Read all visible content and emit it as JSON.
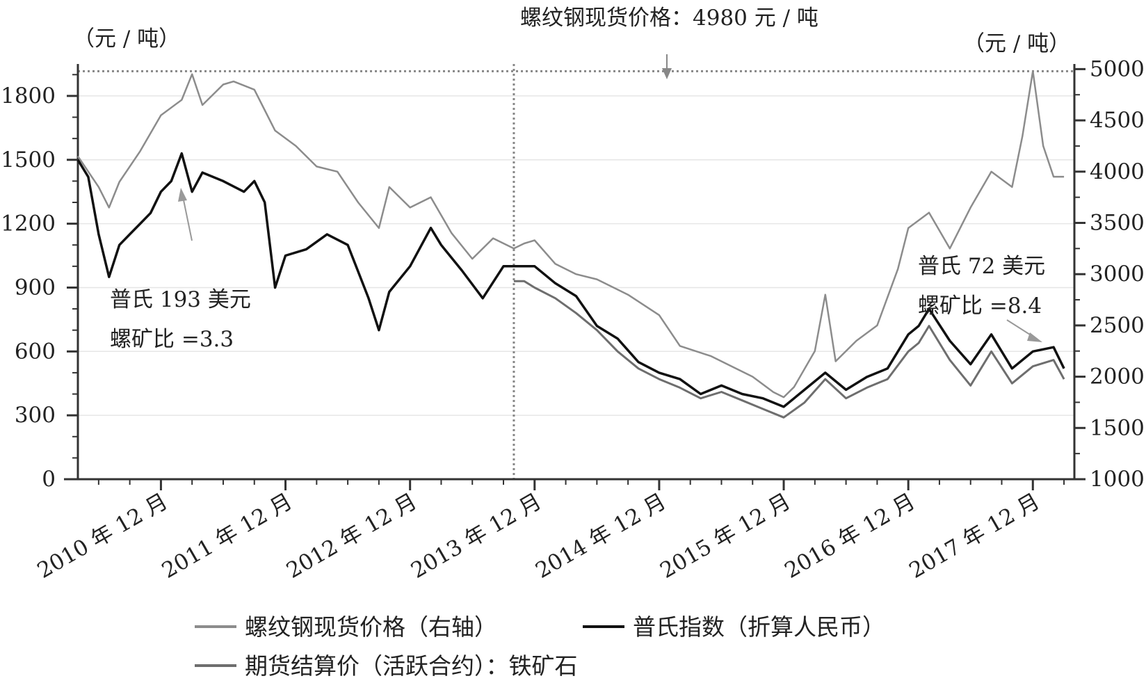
{
  "chart_data": {
    "type": "line",
    "title": "",
    "left_axis": {
      "unit": "（元 / 吨）",
      "ylim": [
        0,
        1950
      ],
      "ticks": [
        0,
        300,
        600,
        900,
        1200,
        1500,
        1800
      ]
    },
    "right_axis": {
      "unit": "（元 / 吨）",
      "ylim": [
        1000,
        5050
      ],
      "ticks": [
        1000,
        1500,
        2000,
        2500,
        3000,
        3500,
        4000,
        4500,
        5000
      ]
    },
    "x_axis": {
      "range": [
        "2010-04",
        "2018-04"
      ],
      "ticks": [
        "2010-12",
        "2011-12",
        "2012-12",
        "2013-12",
        "2014-12",
        "2015-12",
        "2016-12",
        "2017-12"
      ],
      "tick_labels": [
        "2010 年 12 月",
        "2011 年 12 月",
        "2012 年 12 月",
        "2013 年 12 月",
        "2014 年 12 月",
        "2015 年 12 月",
        "2016 年 12 月",
        "2017 年 12 月"
      ]
    },
    "grid": true,
    "legend_position": "bottom",
    "series": [
      {
        "name": "螺纹钢现货价格（右轴）",
        "axis": "right",
        "color": "#8c8c8c",
        "points": [
          [
            "2010-04",
            4150
          ],
          [
            "2010-06",
            3850
          ],
          [
            "2010-07",
            3650
          ],
          [
            "2010-08",
            3900
          ],
          [
            "2010-10",
            4200
          ],
          [
            "2010-12",
            4550
          ],
          [
            "2011-02",
            4700
          ],
          [
            "2011-03",
            4950
          ],
          [
            "2011-04",
            4650
          ],
          [
            "2011-06",
            4850
          ],
          [
            "2011-07",
            4880
          ],
          [
            "2011-09",
            4800
          ],
          [
            "2011-11",
            4400
          ],
          [
            "2012-01",
            4250
          ],
          [
            "2012-03",
            4050
          ],
          [
            "2012-05",
            4000
          ],
          [
            "2012-07",
            3700
          ],
          [
            "2012-09",
            3450
          ],
          [
            "2012-10",
            3850
          ],
          [
            "2012-12",
            3650
          ],
          [
            "2013-02",
            3750
          ],
          [
            "2013-04",
            3400
          ],
          [
            "2013-06",
            3150
          ],
          [
            "2013-08",
            3350
          ],
          [
            "2013-10",
            3250
          ],
          [
            "2013-11",
            3300
          ],
          [
            "2013-12",
            3330
          ],
          [
            "2014-02",
            3100
          ],
          [
            "2014-04",
            3000
          ],
          [
            "2014-06",
            2950
          ],
          [
            "2014-09",
            2800
          ],
          [
            "2014-12",
            2600
          ],
          [
            "2015-02",
            2300
          ],
          [
            "2015-05",
            2200
          ],
          [
            "2015-07",
            2100
          ],
          [
            "2015-09",
            2000
          ],
          [
            "2015-11",
            1850
          ],
          [
            "2015-12",
            1800
          ],
          [
            "2016-01",
            1900
          ],
          [
            "2016-03",
            2250
          ],
          [
            "2016-04",
            2800
          ],
          [
            "2016-05",
            2150
          ],
          [
            "2016-07",
            2350
          ],
          [
            "2016-09",
            2500
          ],
          [
            "2016-11",
            3050
          ],
          [
            "2016-12",
            3450
          ],
          [
            "2017-02",
            3600
          ],
          [
            "2017-04",
            3250
          ],
          [
            "2017-06",
            3650
          ],
          [
            "2017-08",
            4000
          ],
          [
            "2017-10",
            3850
          ],
          [
            "2017-11",
            4350
          ],
          [
            "2017-12",
            4980
          ],
          [
            "2018-01",
            4250
          ],
          [
            "2018-02",
            3950
          ],
          [
            "2018-03",
            3950
          ]
        ]
      },
      {
        "name": "普氏指数（折算人民币）",
        "axis": "left",
        "color": "#111111",
        "points": [
          [
            "2010-04",
            1500
          ],
          [
            "2010-05",
            1420
          ],
          [
            "2010-06",
            1150
          ],
          [
            "2010-07",
            950
          ],
          [
            "2010-08",
            1100
          ],
          [
            "2010-09",
            1150
          ],
          [
            "2010-10",
            1200
          ],
          [
            "2010-11",
            1250
          ],
          [
            "2010-12",
            1350
          ],
          [
            "2011-01",
            1400
          ],
          [
            "2011-02",
            1530
          ],
          [
            "2011-03",
            1350
          ],
          [
            "2011-04",
            1440
          ],
          [
            "2011-06",
            1400
          ],
          [
            "2011-08",
            1350
          ],
          [
            "2011-09",
            1400
          ],
          [
            "2011-10",
            1300
          ],
          [
            "2011-11",
            900
          ],
          [
            "2011-12",
            1050
          ],
          [
            "2012-02",
            1080
          ],
          [
            "2012-04",
            1150
          ],
          [
            "2012-06",
            1100
          ],
          [
            "2012-08",
            850
          ],
          [
            "2012-09",
            700
          ],
          [
            "2012-10",
            880
          ],
          [
            "2012-12",
            1000
          ],
          [
            "2013-02",
            1180
          ],
          [
            "2013-03",
            1100
          ],
          [
            "2013-05",
            980
          ],
          [
            "2013-07",
            850
          ],
          [
            "2013-09",
            1000
          ],
          [
            "2013-11",
            1000
          ],
          [
            "2013-12",
            1000
          ],
          [
            "2014-02",
            920
          ],
          [
            "2014-04",
            860
          ],
          [
            "2014-06",
            720
          ],
          [
            "2014-08",
            660
          ],
          [
            "2014-10",
            550
          ],
          [
            "2014-12",
            500
          ],
          [
            "2015-02",
            470
          ],
          [
            "2015-04",
            400
          ],
          [
            "2015-06",
            440
          ],
          [
            "2015-08",
            400
          ],
          [
            "2015-10",
            380
          ],
          [
            "2015-12",
            340
          ],
          [
            "2016-02",
            420
          ],
          [
            "2016-04",
            500
          ],
          [
            "2016-06",
            420
          ],
          [
            "2016-08",
            480
          ],
          [
            "2016-10",
            520
          ],
          [
            "2016-12",
            680
          ],
          [
            "2017-01",
            720
          ],
          [
            "2017-02",
            800
          ],
          [
            "2017-04",
            650
          ],
          [
            "2017-06",
            540
          ],
          [
            "2017-08",
            680
          ],
          [
            "2017-10",
            520
          ],
          [
            "2017-12",
            600
          ],
          [
            "2018-02",
            620
          ],
          [
            "2018-03",
            520
          ]
        ]
      },
      {
        "name": "期货结算价（活跃合约）：铁矿石",
        "axis": "left",
        "color": "#6e6e6e",
        "points": [
          [
            "2013-10",
            930
          ],
          [
            "2013-11",
            930
          ],
          [
            "2013-12",
            900
          ],
          [
            "2014-02",
            850
          ],
          [
            "2014-04",
            780
          ],
          [
            "2014-06",
            700
          ],
          [
            "2014-08",
            600
          ],
          [
            "2014-10",
            520
          ],
          [
            "2014-12",
            470
          ],
          [
            "2015-02",
            430
          ],
          [
            "2015-04",
            380
          ],
          [
            "2015-06",
            410
          ],
          [
            "2015-08",
            370
          ],
          [
            "2015-10",
            330
          ],
          [
            "2015-12",
            290
          ],
          [
            "2016-02",
            360
          ],
          [
            "2016-04",
            470
          ],
          [
            "2016-06",
            380
          ],
          [
            "2016-08",
            430
          ],
          [
            "2016-10",
            470
          ],
          [
            "2016-12",
            600
          ],
          [
            "2017-01",
            640
          ],
          [
            "2017-02",
            720
          ],
          [
            "2017-04",
            560
          ],
          [
            "2017-06",
            440
          ],
          [
            "2017-08",
            600
          ],
          [
            "2017-10",
            450
          ],
          [
            "2017-12",
            530
          ],
          [
            "2018-02",
            560
          ],
          [
            "2018-03",
            470
          ]
        ]
      }
    ],
    "annotations": [
      {
        "text": "螺纹钢现货价格：4980 元 / 吨",
        "x": "2013-12",
        "axis": "right",
        "y": 4980,
        "reference_line": "horizontal"
      },
      {
        "text": "普氏 193 美元",
        "x": "2011-03",
        "axis": "left",
        "y": 1530
      },
      {
        "text": "螺矿比 =3.3",
        "x": "2011-03",
        "axis": "left",
        "y": 1530
      },
      {
        "text": "普氏 72 美元",
        "x": "2017-12",
        "axis": "left",
        "y": 600
      },
      {
        "text": "螺矿比 =8.4",
        "x": "2017-12",
        "axis": "left",
        "y": 600
      }
    ],
    "reference_lines": [
      {
        "orientation": "vertical",
        "x": "2013-10"
      },
      {
        "orientation": "horizontal",
        "axis": "right",
        "y": 4980
      }
    ]
  }
}
